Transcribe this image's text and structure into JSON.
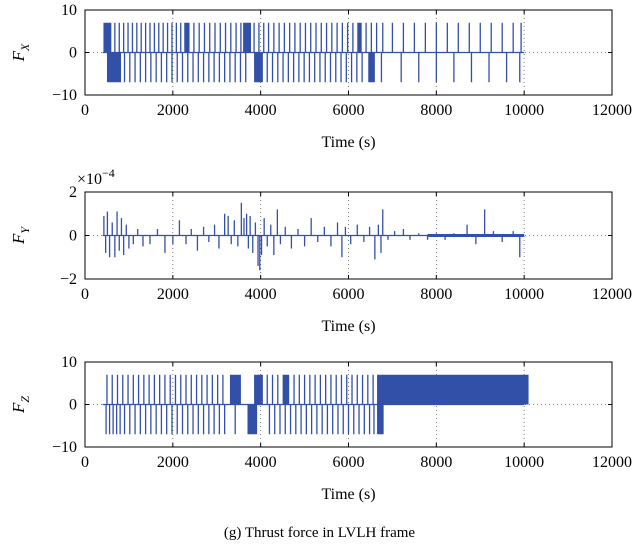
{
  "caption": "(g) Thrust force in LVLH frame",
  "colors": {
    "series": "#3350a8",
    "axis": "#000000",
    "grid": "#606060",
    "background": "#ffffff"
  },
  "chart_data": [
    {
      "type": "line",
      "ylabel": "F",
      "ylabel_sub": "X",
      "xlabel": "Time (s)",
      "xlim": [
        0,
        12000
      ],
      "ylim": [
        -10,
        10
      ],
      "xticks": [
        0,
        2000,
        4000,
        6000,
        8000,
        10000,
        12000
      ],
      "yticks": [
        -10,
        0,
        10
      ],
      "ytick_labels": [
        "−10",
        "0",
        "10"
      ],
      "grid": "dotted",
      "series": [
        {
          "style": "impulse",
          "pos": {
            "height": 7,
            "blocks": [
              [
                420,
                600
              ],
              [
                2260,
                2380
              ],
              [
                3600,
                3780
              ],
              [
                6200,
                6300
              ]
            ],
            "pulses": [
              680,
              780,
              880,
              980,
              1080,
              1180,
              1280,
              1380,
              1480,
              1580,
              1680,
              1780,
              1880,
              1980,
              2080,
              2180,
              2480,
              2600,
              2720,
              2840,
              2960,
              3080,
              3200,
              3320,
              3440,
              3550,
              3850,
              3960,
              4070,
              4180,
              4300,
              4420,
              4540,
              4660,
              4780,
              4900,
              5020,
              5140,
              5260,
              5380,
              5500,
              5620,
              5740,
              5860,
              5980,
              6100,
              6400,
              6520,
              6640,
              6780,
              7000,
              7250,
              7500,
              7750,
              8000,
              8250,
              8500,
              8750,
              9000,
              9250,
              9500,
              9750,
              9930
            ]
          },
          "neg": {
            "height": -7,
            "blocks": [
              [
                500,
                820
              ],
              [
                3850,
                4050
              ],
              [
                6450,
                6600
              ]
            ],
            "pulses": [
              900,
              1020,
              1140,
              1260,
              1380,
              1500,
              1620,
              1740,
              1860,
              1980,
              2100,
              2220,
              2340,
              2460,
              2580,
              2700,
              2820,
              2940,
              3060,
              3180,
              3300,
              3420,
              3540,
              3660,
              4150,
              4270,
              4390,
              4510,
              4630,
              4750,
              4870,
              4990,
              5110,
              5230,
              5350,
              5470,
              5590,
              5710,
              5830,
              5950,
              6070,
              6190,
              6310,
              6750,
              7200,
              7600,
              8000,
              8400,
              8800,
              9200,
              9600,
              9900
            ]
          }
        }
      ]
    },
    {
      "type": "line",
      "ylabel": "F",
      "ylabel_sub": "Y",
      "xlabel": "Time (s)",
      "xlim": [
        0,
        12000
      ],
      "ylim": [
        -2,
        2
      ],
      "xticks": [
        0,
        2000,
        4000,
        6000,
        8000,
        10000,
        12000
      ],
      "yticks": [
        -2,
        0,
        2
      ],
      "ytick_labels": [
        "−2",
        "0",
        "2"
      ],
      "scale_label": "×10",
      "scale_exp": "−4",
      "grid": "dotted",
      "series": [
        {
          "style": "impulse",
          "values": [
            [
              430,
              0.9
            ],
            [
              470,
              -0.8
            ],
            [
              510,
              1.1
            ],
            [
              560,
              -1.0
            ],
            [
              620,
              0.6
            ],
            [
              680,
              -1.0
            ],
            [
              730,
              1.1
            ],
            [
              780,
              -0.7
            ],
            [
              830,
              0.8
            ],
            [
              880,
              -0.9
            ],
            [
              940,
              0.5
            ],
            [
              1000,
              -0.6
            ],
            [
              1100,
              -0.4
            ],
            [
              1200,
              0.3
            ],
            [
              1320,
              -0.5
            ],
            [
              1480,
              -0.4
            ],
            [
              1650,
              0.3
            ],
            [
              1820,
              -0.8
            ],
            [
              2000,
              -0.4
            ],
            [
              2150,
              0.7
            ],
            [
              2300,
              -0.4
            ],
            [
              2420,
              0.3
            ],
            [
              2560,
              -0.7
            ],
            [
              2700,
              0.4
            ],
            [
              2820,
              -0.3
            ],
            [
              2950,
              0.5
            ],
            [
              3050,
              -0.6
            ],
            [
              3180,
              1.0
            ],
            [
              3260,
              0.9
            ],
            [
              3330,
              -0.4
            ],
            [
              3400,
              0.7
            ],
            [
              3480,
              -0.5
            ],
            [
              3560,
              1.5
            ],
            [
              3620,
              0.8
            ],
            [
              3680,
              1.0
            ],
            [
              3720,
              -0.6
            ],
            [
              3760,
              0.9
            ],
            [
              3820,
              -0.8
            ],
            [
              3880,
              0.6
            ],
            [
              3940,
              -1.4
            ],
            [
              3980,
              -1.6
            ],
            [
              4020,
              -0.9
            ],
            [
              4080,
              0.8
            ],
            [
              4150,
              -0.5
            ],
            [
              4230,
              0.5
            ],
            [
              4300,
              -0.9
            ],
            [
              4380,
              1.2
            ],
            [
              4450,
              -0.4
            ],
            [
              4560,
              0.4
            ],
            [
              4700,
              -0.6
            ],
            [
              4850,
              0.3
            ],
            [
              5000,
              -0.5
            ],
            [
              5150,
              0.8
            ],
            [
              5300,
              -0.3
            ],
            [
              5450,
              0.4
            ],
            [
              5600,
              -0.5
            ],
            [
              5750,
              0.6
            ],
            [
              5850,
              -1.0
            ],
            [
              5930,
              0.4
            ],
            [
              6050,
              -0.4
            ],
            [
              6200,
              0.5
            ],
            [
              6350,
              -0.3
            ],
            [
              6480,
              0.4
            ],
            [
              6600,
              -1.1
            ],
            [
              6680,
              0.5
            ],
            [
              6740,
              -0.8
            ],
            [
              6780,
              1.2
            ],
            [
              6900,
              -0.2
            ],
            [
              7050,
              0.2
            ],
            [
              7250,
              0.3
            ],
            [
              7400,
              -0.2
            ],
            [
              7600,
              0.1
            ],
            [
              7800,
              -0.2
            ],
            [
              8000,
              0.1
            ],
            [
              8200,
              -0.2
            ],
            [
              8400,
              0.1
            ],
            [
              8700,
              0.5
            ],
            [
              8900,
              -0.4
            ],
            [
              9100,
              1.2
            ],
            [
              9300,
              0.2
            ],
            [
              9500,
              -0.3
            ],
            [
              9750,
              0.2
            ],
            [
              9900,
              -1.0
            ]
          ]
        }
      ]
    },
    {
      "type": "line",
      "ylabel": "F",
      "ylabel_sub": "Z",
      "xlabel": "Time (s)",
      "xlim": [
        0,
        12000
      ],
      "ylim": [
        -10,
        10
      ],
      "xticks": [
        0,
        2000,
        4000,
        6000,
        8000,
        10000,
        12000
      ],
      "yticks": [
        -10,
        0,
        10
      ],
      "ytick_labels": [
        "−10",
        "0",
        "10"
      ],
      "grid": "dotted",
      "series": [
        {
          "style": "impulse",
          "pos": {
            "height": 7,
            "blocks": [
              [
                3300,
                3550
              ],
              [
                3850,
                4050
              ],
              [
                4500,
                4650
              ],
              [
                6650,
                10100
              ]
            ],
            "pulses": [
              500,
              620,
              740,
              860,
              980,
              1100,
              1220,
              1340,
              1460,
              1580,
              1700,
              1820,
              1940,
              2060,
              2180,
              2300,
              2420,
              2540,
              2660,
              2780,
              2900,
              3020,
              3140,
              4150,
              4270,
              4390,
              4760,
              4880,
              5000,
              5120,
              5240,
              5360,
              5480,
              5600,
              5720,
              5840,
              5960,
              6080,
              6200,
              6320,
              6440,
              6560
            ]
          },
          "neg": {
            "height": -7,
            "blocks": [
              [
                3700,
                3920
              ],
              [
                6650,
                6800
              ]
            ],
            "pulses": [
              480,
              560,
              640,
              720,
              800,
              900,
              1020,
              1140,
              1260,
              1380,
              1500,
              1620,
              1740,
              1860,
              1980,
              2100,
              2220,
              2340,
              2460,
              2580,
              2700,
              2820,
              2940,
              3060,
              3180,
              3420,
              4200,
              4320,
              4440,
              4560,
              4680,
              4800,
              4920,
              5040,
              5160,
              5280,
              5400,
              5520,
              5640,
              5760,
              5880,
              6000,
              6120,
              6240,
              6360,
              6480,
              6580
            ]
          }
        }
      ]
    }
  ]
}
